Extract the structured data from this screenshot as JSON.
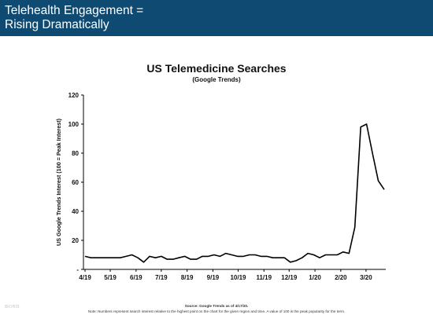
{
  "header": {
    "title_line1": "Telehealth Engagement =",
    "title_line2": "Rising Dramatically"
  },
  "footer": {
    "logo": "BOND",
    "source": "Source: Google Trends as of 4/17/20.",
    "note": "Note: Numbers represent search interest relative to the highest point on the chart for the given region and time. A value of 100 is the peak popularity for the term."
  },
  "chart_data": {
    "type": "line",
    "title": "US Telemedicine Searches",
    "subtitle": "(Google Trends)",
    "ylabel": "US Google Trends Interest (100 = Peak Interest)",
    "xlabel": "",
    "ylim": [
      0,
      120
    ],
    "yticks": [
      0,
      20,
      40,
      60,
      80,
      100,
      120
    ],
    "ytick_labels": [
      "-",
      "20",
      "40",
      "60",
      "80",
      "100",
      "120"
    ],
    "xticks": [
      {
        "label": "4/19",
        "index": 0
      },
      {
        "label": "5/19",
        "index": 4.3
      },
      {
        "label": "6/19",
        "index": 8.7
      },
      {
        "label": "7/19",
        "index": 13
      },
      {
        "label": "8/19",
        "index": 17.4
      },
      {
        "label": "9/19",
        "index": 21.8
      },
      {
        "label": "10/19",
        "index": 26.1
      },
      {
        "label": "11/19",
        "index": 30.5
      },
      {
        "label": "12/19",
        "index": 34.8
      },
      {
        "label": "1/20",
        "index": 39.2
      },
      {
        "label": "2/20",
        "index": 43.6
      },
      {
        "label": "3/20",
        "index": 47.9
      }
    ],
    "grid": false,
    "legend": "none",
    "line_color": "#000000",
    "series": [
      {
        "values": [
          9,
          8,
          8,
          8,
          8,
          8,
          8,
          9,
          10,
          8,
          5,
          9,
          8,
          9,
          7,
          7,
          8,
          9,
          7,
          7,
          9,
          9,
          10,
          9,
          11,
          10,
          9,
          9,
          10,
          10,
          9,
          9,
          8,
          8,
          8,
          5,
          6,
          8,
          11,
          10,
          8,
          10,
          10,
          10,
          12,
          11,
          29,
          98,
          100,
          80,
          61,
          55
        ]
      }
    ]
  }
}
